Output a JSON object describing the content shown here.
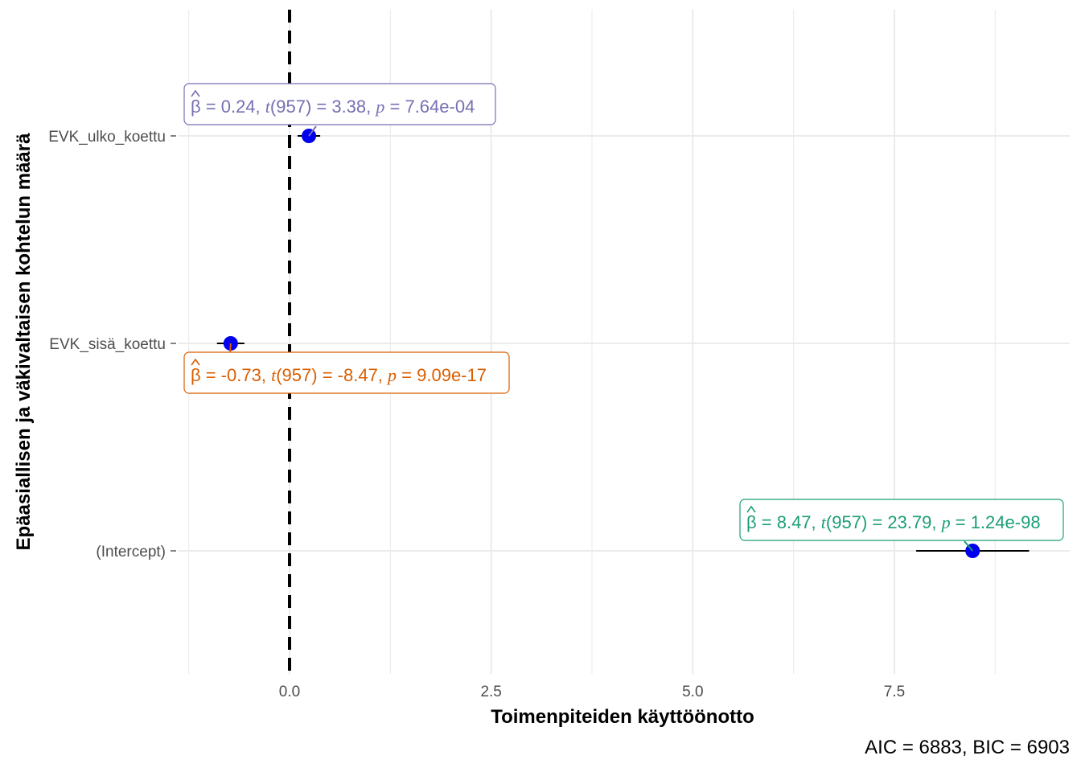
{
  "chart_data": {
    "type": "scatter",
    "subtype": "coefficient-plot",
    "xlabel": "Toimenpiteiden käyttöönotto",
    "ylabel": "Epäasiallisen ja väkivaltaisen kohtelun määrä",
    "xlim": [
      -1.25,
      9.7
    ],
    "x_ticks": [
      0.0,
      2.5,
      5.0,
      7.5
    ],
    "x_tick_labels": [
      "0.0",
      "2.5",
      "5.0",
      "7.5"
    ],
    "reference_line_x": 0,
    "grid": true,
    "caption": "AIC = 6883, BIC = 6903",
    "terms": [
      {
        "name": "EVK_ulko_koettu",
        "estimate": 0.24,
        "ci_low": 0.1,
        "ci_high": 0.38,
        "label": {
          "beta": "0.24",
          "df": "957",
          "t": "3.38",
          "p": "7.64e-04"
        },
        "color": "#7570b3"
      },
      {
        "name": "EVK_sisä_koettu",
        "estimate": -0.73,
        "ci_low": -0.9,
        "ci_high": -0.56,
        "label": {
          "beta": "-0.73",
          "df": "957",
          "t": "-8.47",
          "p": "9.09e-17"
        },
        "color": "#d95f02"
      },
      {
        "name": "(Intercept)",
        "estimate": 8.47,
        "ci_low": 7.77,
        "ci_high": 9.17,
        "label": {
          "beta": "8.47",
          "df": "957",
          "t": "23.79",
          "p": "1.24e-98"
        },
        "color": "#1b9e77"
      }
    ],
    "point_color": "#0000ee"
  }
}
